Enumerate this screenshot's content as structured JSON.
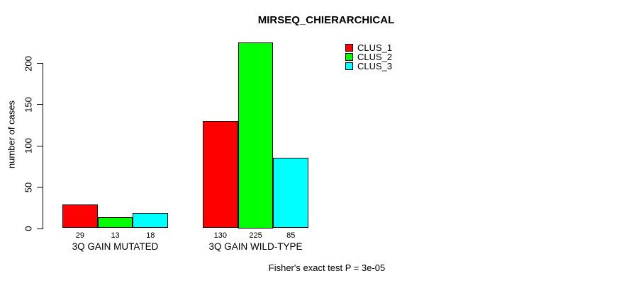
{
  "chart_data": {
    "type": "bar",
    "title": "MIRSEQ_CHIERARCHICAL",
    "xlabel": "",
    "ylabel": "number of cases",
    "ylim": [
      0,
      230
    ],
    "yticks": [
      0,
      50,
      100,
      150,
      200
    ],
    "grid": false,
    "legend_position": "top-right",
    "bar_value_labels_shown": true,
    "categories": [
      "3Q GAIN MUTATED",
      "3Q GAIN WILD-TYPE"
    ],
    "series": [
      {
        "name": "CLUS_1",
        "color": "#ff0000",
        "values": [
          29,
          130
        ]
      },
      {
        "name": "CLUS_2",
        "color": "#00ff00",
        "values": [
          13,
          225
        ]
      },
      {
        "name": "CLUS_3",
        "color": "#00ffff",
        "values": [
          18,
          85
        ]
      }
    ]
  },
  "footer": {
    "text": "Fisher's exact test P = 3e-05"
  }
}
